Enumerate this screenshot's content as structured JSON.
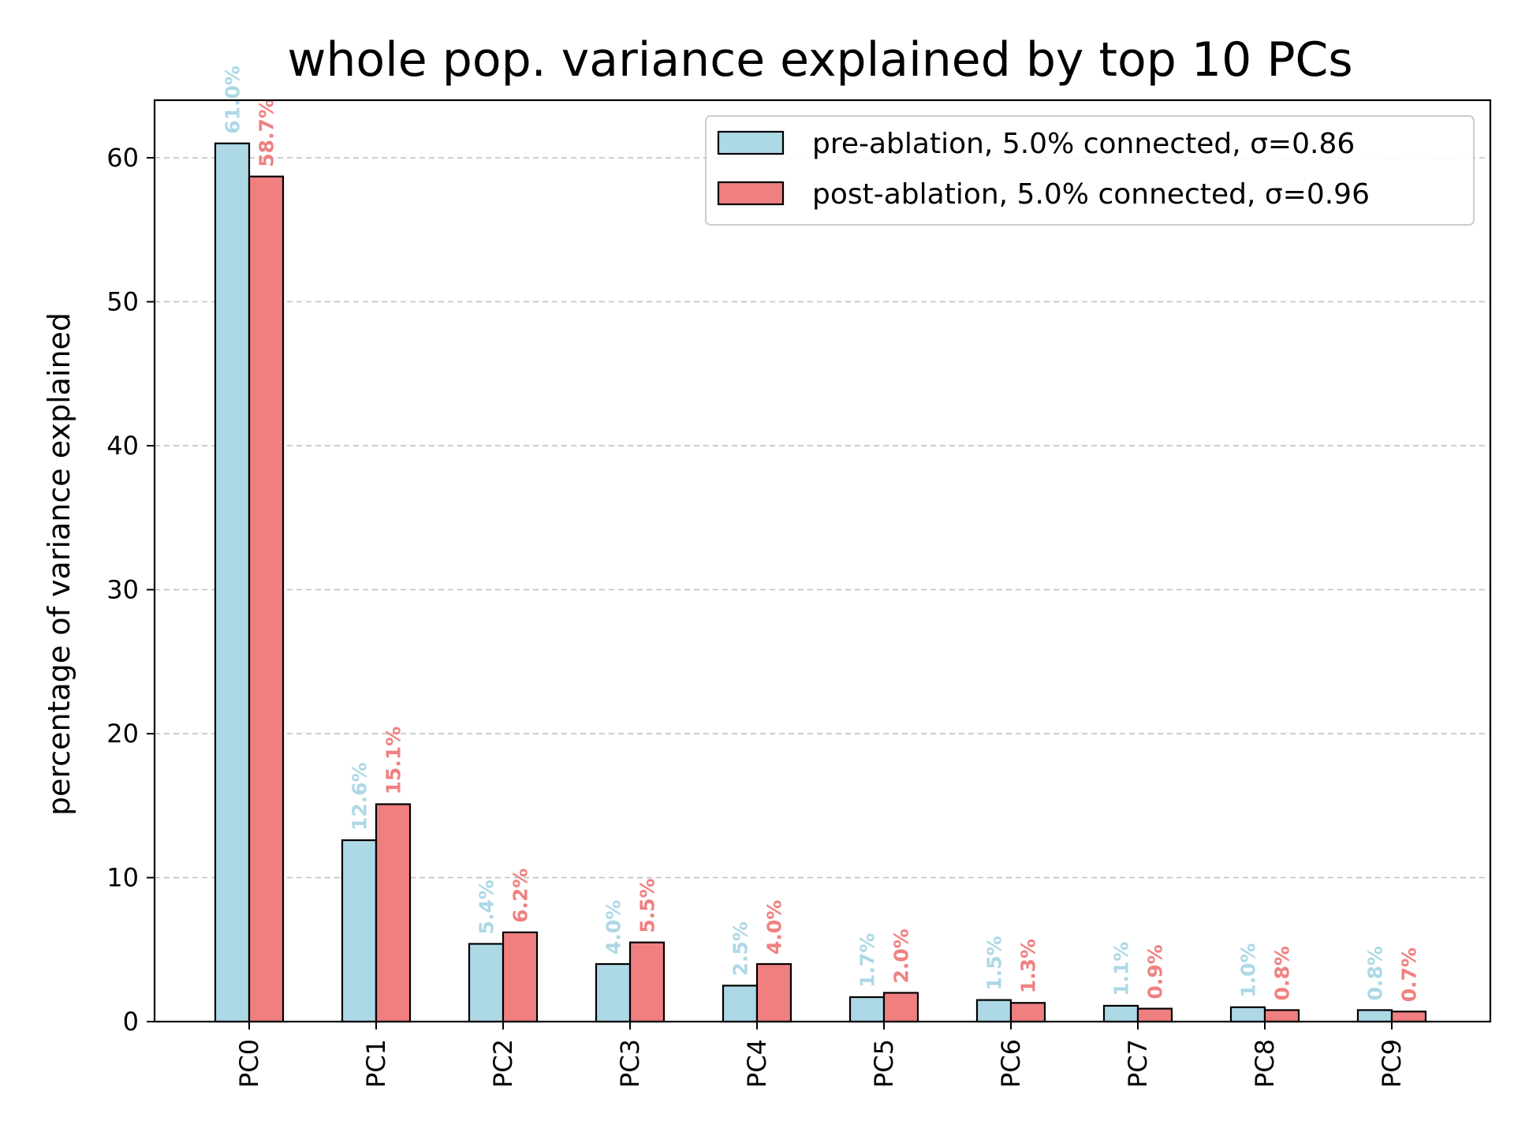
{
  "chart_data": {
    "type": "bar",
    "title": "whole pop. variance explained by top 10 PCs",
    "xlabel": "",
    "ylabel": "percentage of variance explained",
    "categories": [
      "PC0",
      "PC1",
      "PC2",
      "PC3",
      "PC4",
      "PC5",
      "PC6",
      "PC7",
      "PC8",
      "PC9"
    ],
    "series": [
      {
        "name": "pre-ablation, 5.0% connected, σ=0.86",
        "color": "#add8e6",
        "values": [
          61.0,
          12.6,
          5.4,
          4.0,
          2.5,
          1.7,
          1.5,
          1.1,
          1.0,
          0.8
        ],
        "labels": [
          "61.0%",
          "12.6%",
          "5.4%",
          "4.0%",
          "2.5%",
          "1.7%",
          "1.5%",
          "1.1%",
          "1.0%",
          "0.8%"
        ]
      },
      {
        "name": "post-ablation, 5.0% connected, σ=0.96",
        "color": "#f08080",
        "values": [
          58.7,
          15.1,
          6.2,
          5.5,
          4.0,
          2.0,
          1.3,
          0.9,
          0.8,
          0.7
        ],
        "labels": [
          "58.7%",
          "15.1%",
          "6.2%",
          "5.5%",
          "4.0%",
          "2.0%",
          "1.3%",
          "0.9%",
          "0.8%",
          "0.7%"
        ]
      }
    ],
    "ylim": [
      0,
      64
    ],
    "yticks": [
      0,
      10,
      20,
      30,
      40,
      50,
      60
    ],
    "ytick_labels": [
      "0",
      "10",
      "20",
      "30",
      "40",
      "50",
      "60"
    ],
    "grid": "y-dashed",
    "legend_position": "top-right"
  }
}
